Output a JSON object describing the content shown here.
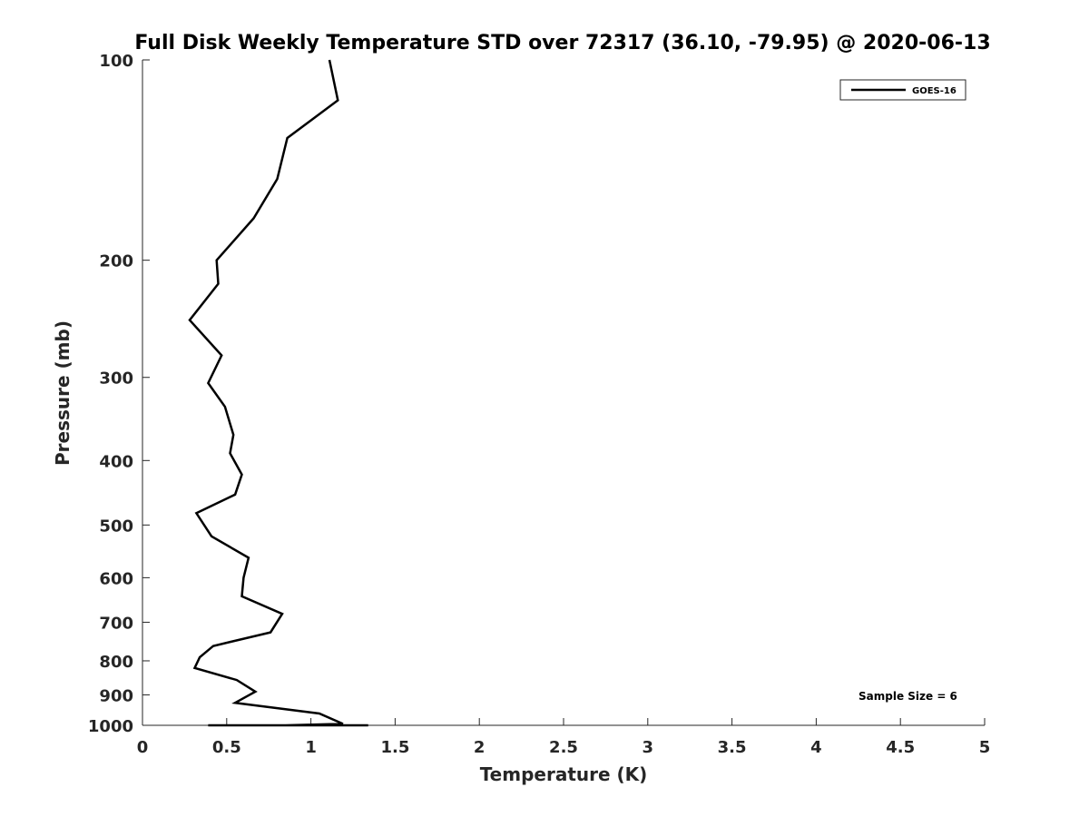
{
  "chart_data": {
    "type": "line",
    "title": "Full Disk Weekly Temperature STD over 72317 (36.10, -79.95) @ 2020-06-13",
    "xlabel": "Temperature (K)",
    "ylabel": "Pressure (mb)",
    "xlim": [
      0,
      5
    ],
    "ylim": [
      100,
      1000
    ],
    "y_scale": "log",
    "y_reversed": true,
    "xticks": [
      0,
      0.5,
      1,
      1.5,
      2,
      2.5,
      3,
      3.5,
      4,
      4.5,
      5
    ],
    "xtick_labels": [
      "0",
      "0.5",
      "1",
      "1.5",
      "2",
      "2.5",
      "3",
      "3.5",
      "4",
      "4.5",
      "5"
    ],
    "yticks": [
      100,
      200,
      300,
      400,
      500,
      600,
      700,
      800,
      900,
      1000
    ],
    "ytick_labels": [
      "100",
      "200",
      "300",
      "400",
      "500",
      "600",
      "700",
      "800",
      "900",
      "1000"
    ],
    "grid": false,
    "legend_position": "top-right",
    "series": [
      {
        "name": "GOES-16",
        "color": "#000000",
        "x": [
          1.11,
          1.16,
          0.86,
          0.8,
          0.66,
          0.44,
          0.45,
          0.28,
          0.47,
          0.39,
          0.49,
          0.54,
          0.52,
          0.59,
          0.55,
          0.32,
          0.41,
          0.63,
          0.6,
          0.59,
          0.83,
          0.76,
          0.42,
          0.34,
          0.31,
          0.56,
          0.67,
          0.55,
          1.05,
          1.19,
          0.85,
          1.16,
          0.83,
          0.62,
          0.61,
          0.39,
          0.43,
          0.51,
          0.7,
          0.81,
          0.69,
          0.52,
          0.82,
          1.15,
          1.34
        ],
        "y": [
          100,
          115,
          131,
          151,
          173,
          200,
          217,
          246,
          278,
          306,
          332,
          366,
          390,
          420,
          450,
          480,
          520,
          560,
          600,
          640,
          680,
          725,
          760,
          790,
          820,
          855,
          890,
          925,
          960,
          995,
          1000,
          1000,
          1000,
          1000,
          1000,
          1000,
          1000,
          1000,
          1000,
          1000,
          1000,
          1000,
          1000,
          1000,
          1000
        ]
      }
    ],
    "annotations": [
      "Sample Size = 6"
    ]
  }
}
